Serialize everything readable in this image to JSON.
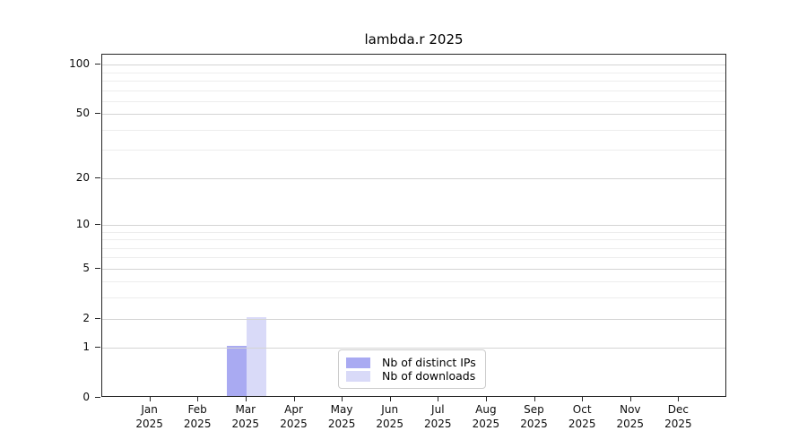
{
  "chart_data": {
    "type": "bar",
    "title": "lambda.r 2025",
    "categories": [
      {
        "month": "Jan",
        "year": "2025"
      },
      {
        "month": "Feb",
        "year": "2025"
      },
      {
        "month": "Mar",
        "year": "2025"
      },
      {
        "month": "Apr",
        "year": "2025"
      },
      {
        "month": "May",
        "year": "2025"
      },
      {
        "month": "Jun",
        "year": "2025"
      },
      {
        "month": "Jul",
        "year": "2025"
      },
      {
        "month": "Aug",
        "year": "2025"
      },
      {
        "month": "Sep",
        "year": "2025"
      },
      {
        "month": "Oct",
        "year": "2025"
      },
      {
        "month": "Nov",
        "year": "2025"
      },
      {
        "month": "Dec",
        "year": "2025"
      }
    ],
    "series": [
      {
        "name": "Nb of distinct IPs",
        "color": "#a9aaf2",
        "values": [
          0,
          0,
          1,
          0,
          0,
          0,
          0,
          0,
          0,
          0,
          0,
          0
        ]
      },
      {
        "name": "Nb of downloads",
        "color": "#d9daf8",
        "values": [
          0,
          0,
          2,
          0,
          0,
          0,
          0,
          0,
          0,
          0,
          0,
          0
        ]
      }
    ],
    "xlabel": "",
    "ylabel": "",
    "y_scale": "log1p",
    "ylim": [
      0,
      115
    ],
    "y_ticks": [
      0,
      1,
      2,
      5,
      10,
      20,
      50,
      100
    ],
    "y_tick_labels": [
      "0",
      "1",
      "2",
      "5",
      "10",
      "20",
      "50",
      "100"
    ],
    "y_minor_gridlines": [
      3,
      4,
      6,
      7,
      8,
      9,
      30,
      40,
      60,
      70,
      80,
      90
    ],
    "grid": "horizontal",
    "legend_position": "bottom-center",
    "colors": {
      "major_grid": "#d4d4d4",
      "minor_grid": "#ededed",
      "axis": "#262626",
      "background": "#ffffff"
    }
  }
}
